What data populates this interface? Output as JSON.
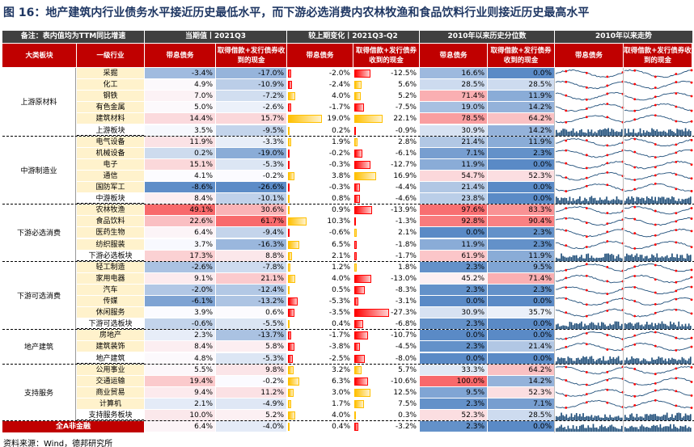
{
  "title": "图 16：地产建筑内行业债务水平接近历史最低水平，而下游必选消费内农林牧渔和食品饮料行业则接近历史最高水平",
  "source": "资料来源：Wind，德邦研究所",
  "headers": {
    "note": "备注：表内值均为TTM同比增速",
    "current": "当期值丨2021Q3",
    "change": "较上期变化丨2021Q3-Q2",
    "pct": "2010年以来历史分位数",
    "trend": "2010年以来走势",
    "sector": "大类板块",
    "industry": "一级行业",
    "debt": "带息债务",
    "cash": "取得借款+发行债券收到的现金"
  },
  "colors": {
    "header_dark": "#404040",
    "header_red": "#c00000",
    "industry_bg": "#fff2cc",
    "pos_bar": "#ff0000",
    "neg_bar": "#ffc000",
    "hi": "#f8696b",
    "lo": "#5a8ac6",
    "trend_line": "#1f4e79",
    "trend_dot": "#ff0000"
  },
  "rows": [
    {
      "group": "上游原材料",
      "ind": "采掘",
      "a": "-3.4%",
      "b": "-17.0%",
      "c": "-2.0%",
      "d": "-12.5%",
      "e": "16.6%",
      "f": "0.0%",
      "av": -3.4,
      "bv": -17.0,
      "cv": -2.0,
      "dv": -12.5,
      "ev": 16.6,
      "fv": 0.0,
      "sum": false
    },
    {
      "group": "上游原材料",
      "ind": "化工",
      "a": "4.9%",
      "b": "-10.9%",
      "c": "-2.4%",
      "d": "5.6%",
      "e": "28.5%",
      "f": "28.5%",
      "av": 4.9,
      "bv": -10.9,
      "cv": -2.4,
      "dv": 5.6,
      "ev": 28.5,
      "fv": 28.5,
      "sum": false
    },
    {
      "group": "上游原材料",
      "ind": "钢铁",
      "a": "7.0%",
      "b": "-7.2%",
      "c": "4.0%",
      "d": "5.2%",
      "e": "71.4%",
      "f": "11.9%",
      "av": 7.0,
      "bv": -7.2,
      "cv": 4.0,
      "dv": 5.2,
      "ev": 71.4,
      "fv": 11.9,
      "sum": false
    },
    {
      "group": "上游原材料",
      "ind": "有色金属",
      "a": "5.0%",
      "b": "-2.6%",
      "c": "-1.7%",
      "d": "-7.5%",
      "e": "19.0%",
      "f": "14.2%",
      "av": 5.0,
      "bv": -2.6,
      "cv": -1.7,
      "dv": -7.5,
      "ev": 19.0,
      "fv": 14.2,
      "sum": false
    },
    {
      "group": "上游原材料",
      "ind": "建筑材料",
      "a": "14.4%",
      "b": "15.7%",
      "c": "19.0%",
      "d": "22.1%",
      "e": "78.5%",
      "f": "64.2%",
      "av": 14.4,
      "bv": 15.7,
      "cv": 19.0,
      "dv": 22.1,
      "ev": 78.5,
      "fv": 64.2,
      "sum": false
    },
    {
      "group": "上游原材料",
      "ind": "上游板块",
      "a": "3.5%",
      "b": "-9.5%",
      "c": "0.2%",
      "d": "-0.9%",
      "e": "30.9%",
      "f": "14.2%",
      "av": 3.5,
      "bv": -9.5,
      "cv": 0.2,
      "dv": -0.9,
      "ev": 30.9,
      "fv": 14.2,
      "sum": true
    },
    {
      "group": "中游制造业",
      "ind": "电气设备",
      "a": "11.9%",
      "b": "-3.3%",
      "c": "1.9%",
      "d": "2.8%",
      "e": "21.4%",
      "f": "11.9%",
      "av": 11.9,
      "bv": -3.3,
      "cv": 1.9,
      "dv": 2.8,
      "ev": 21.4,
      "fv": 11.9,
      "sum": false
    },
    {
      "group": "中游制造业",
      "ind": "机械设备",
      "a": "0.2%",
      "b": "-19.0%",
      "c": "-0.2%",
      "d": "-6.1%",
      "e": "7.1%",
      "f": "2.3%",
      "av": 0.2,
      "bv": -19.0,
      "cv": -0.2,
      "dv": -6.1,
      "ev": 7.1,
      "fv": 2.3,
      "sum": false
    },
    {
      "group": "中游制造业",
      "ind": "电子",
      "a": "15.1%",
      "b": "-5.3%",
      "c": "-0.3%",
      "d": "-12.7%",
      "e": "11.9%",
      "f": "0.0%",
      "av": 15.1,
      "bv": -5.3,
      "cv": -0.3,
      "dv": -12.7,
      "ev": 11.9,
      "fv": 0.0,
      "sum": false
    },
    {
      "group": "中游制造业",
      "ind": "通信",
      "a": "4.1%",
      "b": "-0.2%",
      "c": "3.8%",
      "d": "16.9%",
      "e": "54.7%",
      "f": "52.3%",
      "av": 4.1,
      "bv": -0.2,
      "cv": 3.8,
      "dv": 16.9,
      "ev": 54.7,
      "fv": 52.3,
      "sum": false
    },
    {
      "group": "中游制造业",
      "ind": "国防军工",
      "a": "-8.6%",
      "b": "-26.6%",
      "c": "-0.3%",
      "d": "-4.4%",
      "e": "21.4%",
      "f": "0.0%",
      "av": -8.6,
      "bv": -26.6,
      "cv": -0.3,
      "dv": -4.4,
      "ev": 21.4,
      "fv": 0.0,
      "sum": false
    },
    {
      "group": "中游制造业",
      "ind": "中游板块",
      "a": "8.4%",
      "b": "-10.1%",
      "c": "0.8%",
      "d": "-4.6%",
      "e": "23.8%",
      "f": "0.0%",
      "av": 8.4,
      "bv": -10.1,
      "cv": 0.8,
      "dv": -4.6,
      "ev": 23.8,
      "fv": 0.0,
      "sum": true
    },
    {
      "group": "下游必选消费",
      "ind": "农林牧渔",
      "a": "49.1%",
      "b": "30.6%",
      "c": "0.9%",
      "d": "-13.9%",
      "e": "97.6%",
      "f": "83.3%",
      "av": 49.1,
      "bv": 30.6,
      "cv": 0.9,
      "dv": -13.9,
      "ev": 97.6,
      "fv": 83.3,
      "sum": false
    },
    {
      "group": "下游必选消费",
      "ind": "食品饮料",
      "a": "22.6%",
      "b": "61.7%",
      "c": "10.3%",
      "d": "-1.3%",
      "e": "92.8%",
      "f": "90.4%",
      "av": 22.6,
      "bv": 61.7,
      "cv": 10.3,
      "dv": -1.3,
      "ev": 92.8,
      "fv": 90.4,
      "sum": false
    },
    {
      "group": "下游必选消费",
      "ind": "医药生物",
      "a": "6.4%",
      "b": "-9.4%",
      "c": "-0.6%",
      "d": "2.1%",
      "e": "0.0%",
      "f": "2.3%",
      "av": 6.4,
      "bv": -9.4,
      "cv": -0.6,
      "dv": 2.1,
      "ev": 0.0,
      "fv": 2.3,
      "sum": false
    },
    {
      "group": "下游必选消费",
      "ind": "纺织服装",
      "a": "3.7%",
      "b": "-16.3%",
      "c": "6.5%",
      "d": "-1.8%",
      "e": "11.9%",
      "f": "2.3%",
      "av": 3.7,
      "bv": -16.3,
      "cv": 6.5,
      "dv": -1.8,
      "ev": 11.9,
      "fv": 2.3,
      "sum": false
    },
    {
      "group": "下游必选消费",
      "ind": "下游必选板块",
      "a": "17.3%",
      "b": "8.8%",
      "c": "2.1%",
      "d": "-1.7%",
      "e": "61.9%",
      "f": "11.9%",
      "av": 17.3,
      "bv": 8.8,
      "cv": 2.1,
      "dv": -1.7,
      "ev": 61.9,
      "fv": 11.9,
      "sum": true
    },
    {
      "group": "下游可选消费",
      "ind": "轻工制造",
      "a": "-2.6%",
      "b": "-7.8%",
      "c": "1.2%",
      "d": "1.8%",
      "e": "2.3%",
      "f": "9.5%",
      "av": -2.6,
      "bv": -7.8,
      "cv": 1.2,
      "dv": 1.8,
      "ev": 2.3,
      "fv": 9.5,
      "sum": false
    },
    {
      "group": "下游可选消费",
      "ind": "家用电器",
      "a": "9.1%",
      "b": "21.1%",
      "c": "4.0%",
      "d": "-13.0%",
      "e": "45.2%",
      "f": "71.4%",
      "av": 9.1,
      "bv": 21.1,
      "cv": 4.0,
      "dv": -13.0,
      "ev": 45.2,
      "fv": 71.4,
      "sum": false
    },
    {
      "group": "下游可选消费",
      "ind": "汽车",
      "a": "-2.0%",
      "b": "-12.4%",
      "c": "0.5%",
      "d": "-8.3%",
      "e": "2.3%",
      "f": "2.3%",
      "av": -2.0,
      "bv": -12.4,
      "cv": 0.5,
      "dv": -8.3,
      "ev": 2.3,
      "fv": 2.3,
      "sum": false
    },
    {
      "group": "下游可选消费",
      "ind": "传媒",
      "a": "-6.1%",
      "b": "-13.2%",
      "c": "-5.3%",
      "d": "-3.1%",
      "e": "0.0%",
      "f": "0.0%",
      "av": -6.1,
      "bv": -13.2,
      "cv": -5.3,
      "dv": -3.1,
      "ev": 0.0,
      "fv": 0.0,
      "sum": false
    },
    {
      "group": "下游可选消费",
      "ind": "休闲服务",
      "a": "3.9%",
      "b": "0.6%",
      "c": "-3.5%",
      "d": "-27.3%",
      "e": "30.9%",
      "f": "35.7%",
      "av": 3.9,
      "bv": 0.6,
      "cv": -3.5,
      "dv": -27.3,
      "ev": 30.9,
      "fv": 35.7,
      "sum": false
    },
    {
      "group": "下游可选消费",
      "ind": "下游可选板块",
      "a": "-0.6%",
      "b": "-5.5%",
      "c": "0.4%",
      "d": "-6.8%",
      "e": "2.3%",
      "f": "0.0%",
      "av": -0.6,
      "bv": -5.5,
      "cv": 0.4,
      "dv": -6.8,
      "ev": 2.3,
      "fv": 0.0,
      "sum": true
    },
    {
      "group": "地产建筑",
      "ind": "房地产",
      "a": "2.3%",
      "b": "-13.7%",
      "c": "-1.7%",
      "d": "-10.7%",
      "e": "0.0%",
      "f": "0.0%",
      "av": 2.3,
      "bv": -13.7,
      "cv": -1.7,
      "dv": -10.7,
      "ev": 0.0,
      "fv": 0.0,
      "sum": false
    },
    {
      "group": "地产建筑",
      "ind": "建筑装饰",
      "a": "8.4%",
      "b": "5.8%",
      "c": "-3.8%",
      "d": "-4.5%",
      "e": "2.3%",
      "f": "21.4%",
      "av": 8.4,
      "bv": 5.8,
      "cv": -3.8,
      "dv": -4.5,
      "ev": 2.3,
      "fv": 21.4,
      "sum": false
    },
    {
      "group": "地产建筑",
      "ind": "地产建筑",
      "a": "4.8%",
      "b": "-5.3%",
      "c": "-2.5%",
      "d": "-8.0%",
      "e": "0.0%",
      "f": "0.0%",
      "av": 4.8,
      "bv": -5.3,
      "cv": -2.5,
      "dv": -8.0,
      "ev": 0.0,
      "fv": 0.0,
      "sum": true
    },
    {
      "group": "支持服务",
      "ind": "公用事业",
      "a": "5.5%",
      "b": "9.8%",
      "c": "3.2%",
      "d": "5.7%",
      "e": "33.3%",
      "f": "64.2%",
      "av": 5.5,
      "bv": 9.8,
      "cv": 3.2,
      "dv": 5.7,
      "ev": 33.3,
      "fv": 64.2,
      "sum": false
    },
    {
      "group": "支持服务",
      "ind": "交通运输",
      "a": "19.4%",
      "b": "-0.2%",
      "c": "6.3%",
      "d": "-10.6%",
      "e": "100.0%",
      "f": "14.2%",
      "av": 19.4,
      "bv": -0.2,
      "cv": 6.3,
      "dv": -10.6,
      "ev": 100.0,
      "fv": 14.2,
      "sum": false
    },
    {
      "group": "支持服务",
      "ind": "商业贸易",
      "a": "9.4%",
      "b": "11.2%",
      "c": "3.0%",
      "d": "12.5%",
      "e": "9.5%",
      "f": "52.3%",
      "av": 9.4,
      "bv": 11.2,
      "cv": 3.0,
      "dv": 12.5,
      "ev": 9.5,
      "fv": 52.3,
      "sum": false
    },
    {
      "group": "支持服务",
      "ind": "计算机",
      "a": "2.1%",
      "b": "-4.9%",
      "c": "1.7%",
      "d": "7.5%",
      "e": "2.3%",
      "f": "7.1%",
      "av": 2.1,
      "bv": -4.9,
      "cv": 1.7,
      "dv": 7.5,
      "ev": 2.3,
      "fv": 7.1,
      "sum": false
    },
    {
      "group": "支持服务",
      "ind": "支持服务板块",
      "a": "10.0%",
      "b": "5.2%",
      "c": "4.0%",
      "d": "0.3%",
      "e": "52.3%",
      "f": "28.5%",
      "av": 10.0,
      "bv": 5.2,
      "cv": 4.0,
      "dv": 0.3,
      "ev": 52.3,
      "fv": 28.5,
      "sum": true
    },
    {
      "group": "全A非金融",
      "ind": "",
      "a": "6.4%",
      "b": "-4.0%",
      "c": "0.4%",
      "d": "-3.2%",
      "e": "2.3%",
      "f": "0.0%",
      "av": 6.4,
      "bv": -4.0,
      "cv": 0.4,
      "dv": -3.2,
      "ev": 2.3,
      "fv": 0.0,
      "sum": true
    }
  ]
}
